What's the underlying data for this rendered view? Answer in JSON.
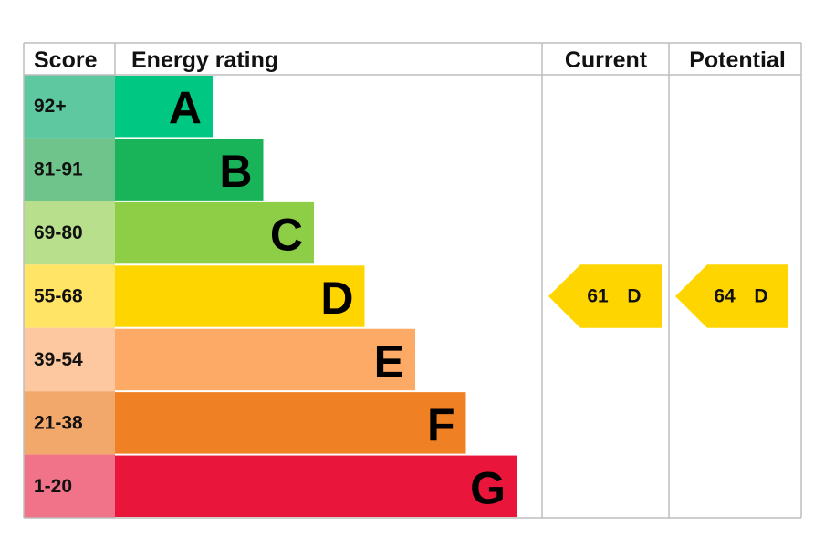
{
  "header": {
    "score": "Score",
    "rating": "Energy rating",
    "current": "Current",
    "potential": "Potential"
  },
  "bands": [
    {
      "score": "92+",
      "letter": "A",
      "color": "#00c781",
      "score_color": "#5ec8a0"
    },
    {
      "score": "81-91",
      "letter": "B",
      "color": "#19b459",
      "score_color": "#6fc48c"
    },
    {
      "score": "69-80",
      "letter": "C",
      "color": "#8dce46",
      "score_color": "#b7df8c"
    },
    {
      "score": "55-68",
      "letter": "D",
      "color": "#ffd500",
      "score_color": "#ffe466"
    },
    {
      "score": "39-54",
      "letter": "E",
      "color": "#fcaa65",
      "score_color": "#fdc8a0"
    },
    {
      "score": "21-38",
      "letter": "F",
      "color": "#ef8023",
      "score_color": "#f3a86b"
    },
    {
      "score": "1-20",
      "letter": "G",
      "color": "#e9153b",
      "score_color": "#f07389"
    }
  ],
  "current": {
    "score": 61,
    "band": "D"
  },
  "potential": {
    "score": 64,
    "band": "D"
  }
}
